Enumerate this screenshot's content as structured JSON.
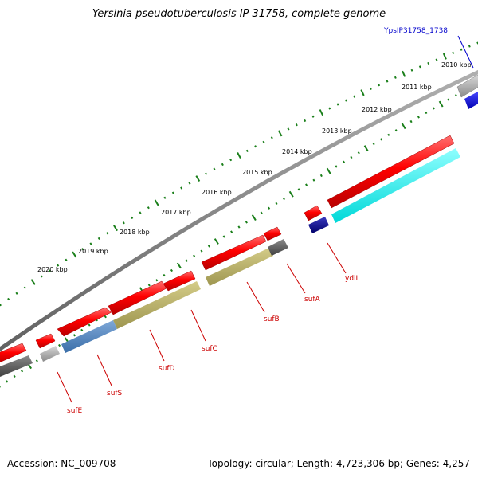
{
  "title": "Yersinia pseudotuberculosis IP 31758, complete genome",
  "accession": "Accession: NC_009708",
  "topology": "Topology: circular; Length: 4,723,306 bp; Genes: 4,257",
  "kbp_labels": [
    "2010 kbp",
    "2011 kbp",
    "2012 kbp",
    "2013 kbp",
    "2014 kbp",
    "2015 kbp",
    "2016 kbp",
    "2017 kbp",
    "2018 kbp",
    "2019 kbp",
    "2020 kbp"
  ],
  "gene_labels": [
    "sufE",
    "sufS",
    "sufD",
    "sufC",
    "sufB",
    "sufA",
    "ydiI"
  ],
  "locus_tag_label": "YpsIP31758_1738",
  "colors": {
    "cds": "#ff0000",
    "gene": "#9a9a9a",
    "backbone": "#7f7f7f",
    "tick": "#1a7f1a",
    "gene_label": "#cc0000",
    "locus_label": "#0000cc",
    "suf_category": "#b8b060",
    "sufs_category": "#4f86c0",
    "ydii_category": "#00ffff",
    "navy_category": "#000080",
    "blue_category": "#0000ee",
    "dark_gene": "#555555"
  }
}
